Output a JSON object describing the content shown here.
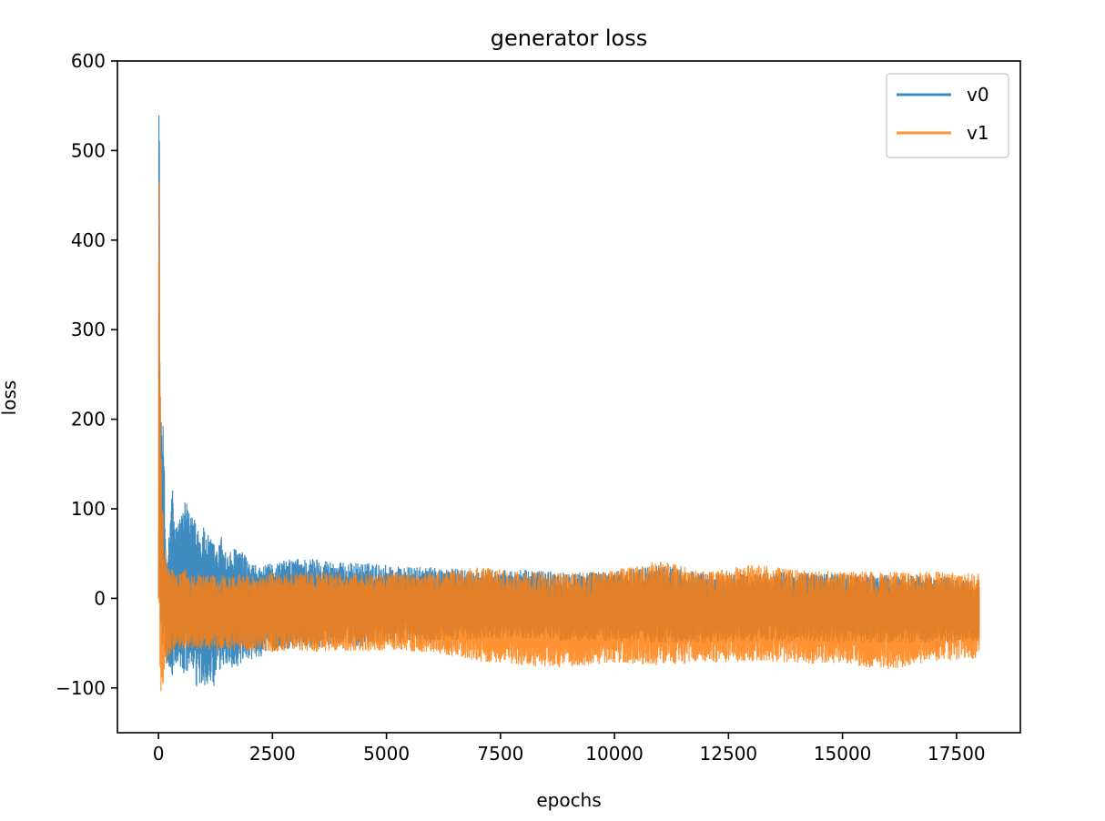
{
  "chart_data": {
    "type": "line",
    "title": "generator loss",
    "xlabel": "epochs",
    "ylabel": "loss",
    "xlim": [
      -900,
      18900
    ],
    "ylim": [
      -150,
      600
    ],
    "xticks": [
      0,
      2500,
      5000,
      7500,
      10000,
      12500,
      15000,
      17500
    ],
    "xtick_labels": [
      "0",
      "2500",
      "5000",
      "7500",
      "10000",
      "12500",
      "15000",
      "17500"
    ],
    "yticks": [
      -100,
      0,
      100,
      200,
      300,
      400,
      500,
      600
    ],
    "ytick_labels": [
      "−100",
      "0",
      "100",
      "200",
      "300",
      "400",
      "500",
      "600"
    ],
    "grid": false,
    "legend_position": "top-right",
    "series": [
      {
        "name": "v0",
        "color": "#1f77b4",
        "x": [
          0,
          10,
          20,
          30,
          50,
          80,
          120,
          160,
          200,
          250,
          300,
          350,
          400,
          450,
          500,
          600,
          700,
          800,
          900,
          1000,
          1100,
          1200,
          1300,
          1400,
          1500,
          1750,
          2000,
          2250,
          2500,
          3000,
          3500,
          4000,
          4500,
          5000,
          5500,
          6000,
          7000,
          8000,
          9000,
          10000,
          11000,
          12000,
          13000,
          14000,
          15000,
          16000,
          17000,
          18000
        ],
        "upper": [
          0,
          600,
          520,
          300,
          200,
          195,
          190,
          60,
          40,
          90,
          145,
          80,
          85,
          90,
          95,
          110,
          90,
          105,
          75,
          80,
          70,
          65,
          55,
          75,
          50,
          60,
          40,
          35,
          40,
          45,
          45,
          40,
          40,
          38,
          35,
          35,
          32,
          32,
          30,
          30,
          38,
          28,
          28,
          30,
          28,
          26,
          26,
          20
        ],
        "lower": [
          0,
          -10,
          -20,
          -30,
          -40,
          -50,
          -60,
          -70,
          -80,
          -85,
          -90,
          -80,
          -75,
          -70,
          -90,
          -85,
          -80,
          -100,
          -105,
          -100,
          -95,
          -110,
          -85,
          -80,
          -75,
          -80,
          -70,
          -65,
          -60,
          -55,
          -55,
          -50,
          -55,
          -50,
          -50,
          -50,
          -45,
          -45,
          -48,
          -48,
          -50,
          -50,
          -48,
          -48,
          -50,
          -50,
          -50,
          -48
        ]
      },
      {
        "name": "v1",
        "color": "#ff7f0e",
        "x": [
          0,
          10,
          20,
          30,
          50,
          80,
          120,
          160,
          200,
          250,
          300,
          350,
          400,
          450,
          500,
          600,
          700,
          800,
          900,
          1000,
          1100,
          1200,
          1300,
          1400,
          1500,
          1750,
          2000,
          2250,
          2500,
          3000,
          3500,
          4000,
          4500,
          5000,
          5500,
          6000,
          7000,
          8000,
          9000,
          10000,
          11000,
          12000,
          13000,
          14000,
          15000,
          16000,
          17000,
          18000
        ],
        "upper": [
          0,
          520,
          400,
          300,
          170,
          130,
          60,
          55,
          40,
          30,
          35,
          30,
          25,
          28,
          30,
          32,
          25,
          28,
          30,
          25,
          28,
          26,
          24,
          26,
          25,
          28,
          28,
          25,
          30,
          28,
          30,
          28,
          28,
          30,
          28,
          28,
          35,
          30,
          28,
          32,
          42,
          30,
          38,
          32,
          30,
          30,
          30,
          28
        ],
        "lower": [
          0,
          -60,
          -100,
          -135,
          -115,
          -100,
          -90,
          -75,
          -70,
          -65,
          -60,
          -60,
          -55,
          -60,
          -58,
          -55,
          -60,
          -55,
          -60,
          -55,
          -58,
          -55,
          -60,
          -55,
          -58,
          -60,
          -60,
          -58,
          -60,
          -58,
          -60,
          -58,
          -60,
          -58,
          -60,
          -60,
          -70,
          -75,
          -78,
          -72,
          -75,
          -72,
          -70,
          -72,
          -75,
          -80,
          -70,
          -68
        ]
      }
    ]
  }
}
